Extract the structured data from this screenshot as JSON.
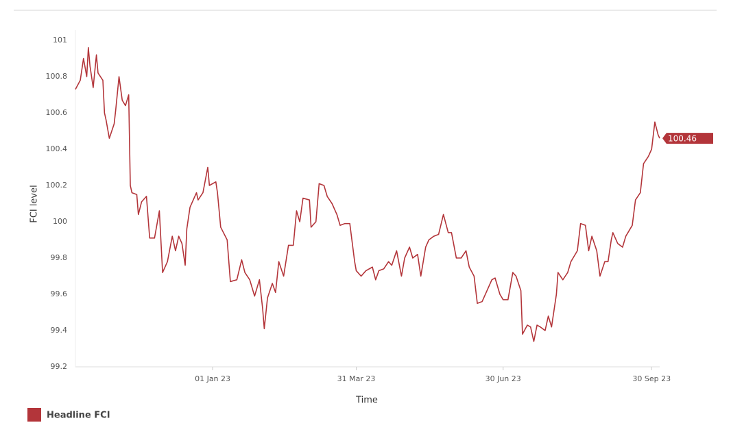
{
  "chart_data": {
    "type": "line",
    "x_label": "Time",
    "y_label": "FCI level",
    "x": [
      "2022-10-08",
      "2022-10-11",
      "2022-10-13",
      "2022-10-15",
      "2022-10-16",
      "2022-10-17",
      "2022-10-19",
      "2022-10-21",
      "2022-10-22",
      "2022-10-25",
      "2022-10-26",
      "2022-10-27",
      "2022-10-29",
      "2022-11-01",
      "2022-11-02",
      "2022-11-04",
      "2022-11-06",
      "2022-11-08",
      "2022-11-10",
      "2022-11-11",
      "2022-11-12",
      "2022-11-15",
      "2022-11-16",
      "2022-11-18",
      "2022-11-21",
      "2022-11-23",
      "2022-11-26",
      "2022-11-29",
      "2022-12-01",
      "2022-12-04",
      "2022-12-07",
      "2022-12-09",
      "2022-12-11",
      "2022-12-13",
      "2022-12-15",
      "2022-12-16",
      "2022-12-18",
      "2022-12-22",
      "2022-12-23",
      "2022-12-26",
      "2022-12-29",
      "2022-12-30",
      "2023-01-03",
      "2023-01-04",
      "2023-01-06",
      "2023-01-10",
      "2023-01-12",
      "2023-01-16",
      "2023-01-19",
      "2023-01-21",
      "2023-01-24",
      "2023-01-27",
      "2023-01-30",
      "2023-02-01",
      "2023-02-02",
      "2023-02-04",
      "2023-02-07",
      "2023-02-09",
      "2023-02-11",
      "2023-02-14",
      "2023-02-17",
      "2023-02-20",
      "2023-02-22",
      "2023-02-24",
      "2023-02-26",
      "2023-03-02",
      "2023-03-03",
      "2023-03-06",
      "2023-03-08",
      "2023-03-11",
      "2023-03-13",
      "2023-03-16",
      "2023-03-19",
      "2023-03-21",
      "2023-03-24",
      "2023-03-27",
      "2023-03-30",
      "2023-03-31",
      "2023-04-03",
      "2023-04-06",
      "2023-04-10",
      "2023-04-12",
      "2023-04-14",
      "2023-04-17",
      "2023-04-20",
      "2023-04-22",
      "2023-04-25",
      "2023-04-28",
      "2023-04-30",
      "2023-05-03",
      "2023-05-05",
      "2023-05-08",
      "2023-05-10",
      "2023-05-13",
      "2023-05-15",
      "2023-05-18",
      "2023-05-21",
      "2023-05-24",
      "2023-05-27",
      "2023-05-29",
      "2023-06-01",
      "2023-06-04",
      "2023-06-07",
      "2023-06-09",
      "2023-06-12",
      "2023-06-14",
      "2023-06-17",
      "2023-06-20",
      "2023-06-23",
      "2023-06-25",
      "2023-06-28",
      "2023-06-30",
      "2023-07-03",
      "2023-07-06",
      "2023-07-08",
      "2023-07-11",
      "2023-07-12",
      "2023-07-15",
      "2023-07-17",
      "2023-07-19",
      "2023-07-21",
      "2023-07-23",
      "2023-07-26",
      "2023-07-28",
      "2023-07-30",
      "2023-08-02",
      "2023-08-03",
      "2023-08-06",
      "2023-08-09",
      "2023-08-11",
      "2023-08-15",
      "2023-08-17",
      "2023-08-20",
      "2023-08-22",
      "2023-08-24",
      "2023-08-27",
      "2023-08-29",
      "2023-09-01",
      "2023-09-03",
      "2023-09-05",
      "2023-09-06",
      "2023-09-09",
      "2023-09-12",
      "2023-09-14",
      "2023-09-18",
      "2023-09-20",
      "2023-09-23",
      "2023-09-25",
      "2023-09-28",
      "2023-09-30",
      "2023-10-02",
      "2023-10-04",
      "2023-10-05"
    ],
    "series": [
      {
        "name": "Headline FCI",
        "color": "#b3353a",
        "values": [
          100.73,
          100.78,
          100.9,
          100.8,
          100.96,
          100.86,
          100.74,
          100.92,
          100.82,
          100.78,
          100.6,
          100.56,
          100.46,
          100.54,
          100.62,
          100.8,
          100.67,
          100.64,
          100.7,
          100.2,
          100.16,
          100.15,
          100.04,
          100.11,
          100.14,
          99.91,
          99.91,
          100.06,
          99.72,
          99.78,
          99.92,
          99.84,
          99.92,
          99.88,
          99.76,
          99.96,
          100.08,
          100.16,
          100.12,
          100.16,
          100.3,
          100.2,
          100.22,
          100.16,
          99.97,
          99.9,
          99.67,
          99.68,
          99.79,
          99.72,
          99.68,
          99.59,
          99.68,
          99.52,
          99.41,
          99.58,
          99.66,
          99.61,
          99.78,
          99.7,
          99.87,
          99.87,
          100.06,
          100,
          100.13,
          100.12,
          99.97,
          100,
          100.21,
          100.2,
          100.14,
          100.1,
          100.04,
          99.98,
          99.99,
          99.99,
          99.78,
          99.73,
          99.7,
          99.73,
          99.75,
          99.68,
          99.73,
          99.74,
          99.78,
          99.76,
          99.84,
          99.7,
          99.8,
          99.86,
          99.8,
          99.82,
          99.7,
          99.86,
          99.9,
          99.92,
          99.93,
          100.04,
          99.94,
          99.94,
          99.8,
          99.8,
          99.84,
          99.75,
          99.7,
          99.55,
          99.56,
          99.62,
          99.68,
          99.69,
          99.6,
          99.57,
          99.57,
          99.72,
          99.7,
          99.62,
          99.38,
          99.43,
          99.42,
          99.34,
          99.43,
          99.42,
          99.4,
          99.48,
          99.42,
          99.6,
          99.72,
          99.68,
          99.72,
          99.78,
          99.84,
          99.99,
          99.98,
          99.84,
          99.92,
          99.84,
          99.7,
          99.78,
          99.78,
          99.9,
          99.94,
          99.88,
          99.86,
          99.92,
          99.98,
          100.12,
          100.16,
          100.32,
          100.36,
          100.4,
          100.55,
          100.48,
          100.46
        ]
      }
    ],
    "xlim": [
      "2022-10-08",
      "2023-10-05"
    ],
    "xticks": [
      {
        "value": "2023-01-01",
        "label": "01 Jan 23"
      },
      {
        "value": "2023-03-31",
        "label": "31 Mar 23"
      },
      {
        "value": "2023-06-30",
        "label": "30 Jun 23"
      },
      {
        "value": "2023-09-30",
        "label": "30 Sep 23"
      }
    ],
    "ylim": [
      99.2,
      101
    ],
    "yticks": [
      99.2,
      99.4,
      99.6,
      99.8,
      100,
      100.2,
      100.4,
      100.6,
      100.8,
      101
    ],
    "grid": false,
    "legend": "bottom-left"
  }
}
